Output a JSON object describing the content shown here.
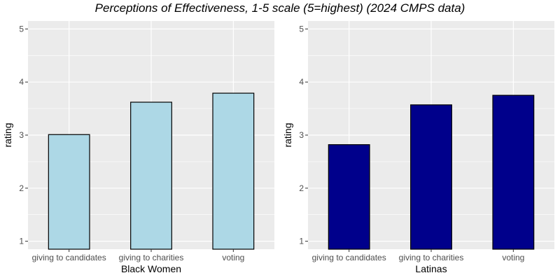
{
  "title": "Perceptions of Effectiveness, 1-5 scale (5=highest) (2024 CMPS data)",
  "chart_data": [
    {
      "type": "bar",
      "xlabel": "Black Women",
      "ylabel": "rating",
      "categories": [
        "giving to candidates",
        "giving to charities",
        "voting"
      ],
      "values": [
        3.01,
        3.62,
        3.79
      ],
      "ylim": [
        0.85,
        5.15
      ],
      "yticks": [
        1,
        2,
        3,
        4,
        5
      ],
      "bar_color": "#ADD8E6",
      "grid": true
    },
    {
      "type": "bar",
      "xlabel": "Latinas",
      "ylabel": "rating",
      "categories": [
        "giving to candidates",
        "giving to charities",
        "voting"
      ],
      "values": [
        2.82,
        3.57,
        3.75
      ],
      "ylim": [
        0.85,
        5.15
      ],
      "yticks": [
        1,
        2,
        3,
        4,
        5
      ],
      "bar_color": "#00008B",
      "grid": true
    }
  ],
  "theme": {
    "panel_bg": "#EBEBEB",
    "grid_color": "#FFFFFF",
    "bar_outline": "#000000",
    "tick_text": "#4D4D4D"
  }
}
